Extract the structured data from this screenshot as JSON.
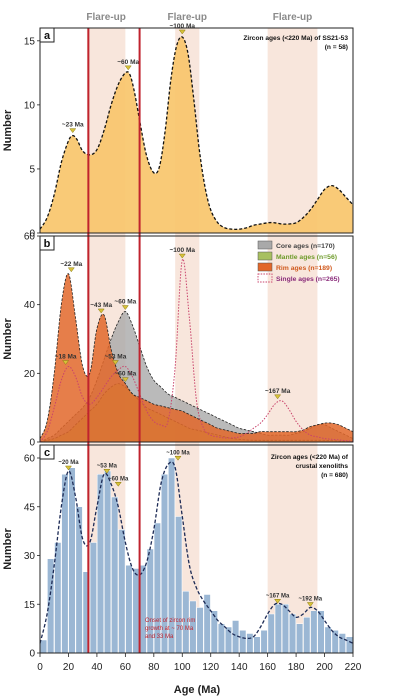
{
  "figure": {
    "xlabel": "Age (Ma)",
    "xlim": [
      0,
      220
    ],
    "xticks": [
      0,
      20,
      40,
      60,
      80,
      100,
      120,
      140,
      160,
      180,
      200,
      220
    ],
    "flareup_label": "Flare-up",
    "flareup_bands": [
      [
        33,
        60
      ],
      [
        95,
        112
      ],
      [
        160,
        195
      ]
    ],
    "red_lines": [
      34,
      70
    ],
    "colors": {
      "orange_fill": "#f8c66b",
      "core": "#a9a9a9",
      "mantle": "#a8c060",
      "rim": "#e2672a",
      "single": "#c9436b",
      "blue_bar": "#9bb7d4",
      "band": "#f6ddd0",
      "red_line": "#c0232e",
      "peak_marker": "#d8c23a"
    }
  },
  "chart_data": [
    {
      "type": "area",
      "panel_letter": "a",
      "title": "Zircon ages (<220 Ma) of SS21-53",
      "n_label": "(n = 58)",
      "ylabel": "Number",
      "ylim": [
        0,
        16
      ],
      "yticks": [
        0,
        5,
        10,
        15
      ],
      "x": [
        0,
        5,
        10,
        15,
        20,
        23,
        26,
        30,
        35,
        40,
        45,
        50,
        55,
        60,
        63,
        66,
        70,
        75,
        80,
        84,
        88,
        92,
        96,
        100,
        104,
        108,
        112,
        116,
        120,
        125,
        130,
        135,
        140,
        145,
        150,
        155,
        160,
        165,
        170,
        175,
        180,
        185,
        190,
        195,
        200,
        205,
        210,
        215,
        220
      ],
      "values": [
        0.3,
        1.2,
        3.0,
        5.5,
        7.2,
        7.6,
        7.3,
        6.4,
        6.1,
        6.5,
        8.0,
        10.0,
        11.6,
        12.5,
        12.4,
        11.2,
        8.8,
        6.0,
        4.7,
        5.2,
        8.0,
        12.0,
        14.6,
        15.3,
        14.0,
        10.5,
        6.5,
        3.6,
        1.8,
        0.8,
        0.4,
        0.3,
        0.3,
        0.4,
        0.6,
        0.7,
        0.8,
        0.8,
        0.7,
        0.7,
        0.8,
        1.2,
        1.8,
        2.6,
        3.4,
        3.7,
        3.4,
        2.8,
        2.2
      ],
      "peaks": [
        {
          "age": 23,
          "label": "~23 Ma",
          "value": 7.6
        },
        {
          "age": 62,
          "label": "~60 Ma",
          "value": 12.5
        },
        {
          "age": 100,
          "label": "~100 Ma",
          "value": 15.3
        }
      ]
    },
    {
      "type": "area",
      "panel_letter": "b",
      "ylabel": "Number",
      "ylim": [
        0,
        60
      ],
      "yticks": [
        0,
        20,
        40,
        60
      ],
      "x": [
        0,
        5,
        10,
        15,
        20,
        25,
        30,
        35,
        40,
        45,
        50,
        55,
        60,
        65,
        70,
        75,
        80,
        85,
        90,
        95,
        100,
        105,
        110,
        115,
        120,
        125,
        130,
        135,
        140,
        145,
        150,
        155,
        160,
        165,
        170,
        175,
        180,
        185,
        190,
        195,
        200,
        205,
        210,
        215,
        220
      ],
      "series": [
        {
          "name": "Core ages (n=170)",
          "key": "core",
          "style": "fill",
          "values": [
            0,
            1,
            2,
            4,
            6,
            8,
            10,
            13,
            18,
            24,
            30,
            35,
            38,
            34,
            28,
            22,
            18,
            16,
            14,
            13,
            12,
            11,
            10,
            9,
            8,
            7,
            6,
            5,
            4,
            3.5,
            3,
            2.5,
            2,
            2,
            2,
            2,
            2.5,
            3,
            4,
            5,
            5,
            4,
            3,
            2,
            1
          ]
        },
        {
          "name": "Mantle ages (n=56)",
          "key": "mantle",
          "style": "fill",
          "values": [
            0,
            0.5,
            1,
            2,
            3,
            5,
            7,
            9,
            11,
            14,
            16,
            17,
            16,
            14,
            12,
            10,
            9,
            8,
            7,
            6,
            5,
            4,
            3.5,
            3,
            2.5,
            2,
            1.5,
            1,
            0.8,
            0.6,
            0.5,
            0.5,
            0.5,
            0.5,
            0.5,
            0.5,
            0.5,
            0.5,
            0.5,
            0.5,
            0.5,
            0.4,
            0.3,
            0.2,
            0.1
          ]
        },
        {
          "name": "Rim ages (n=189)",
          "key": "rim",
          "style": "fill",
          "values": [
            1,
            6,
            20,
            40,
            49,
            36,
            22,
            20,
            33,
            37,
            27,
            20,
            17,
            14,
            13,
            12,
            11,
            10.5,
            10,
            9.5,
            9,
            8,
            7,
            6,
            5,
            4,
            3.5,
            3,
            2.5,
            2.5,
            2.5,
            3,
            3,
            3,
            3,
            3,
            3,
            3.5,
            4.5,
            5,
            5.5,
            5.5,
            5,
            4,
            3
          ]
        },
        {
          "name": "Single ages (n=265)",
          "key": "single",
          "style": "dotted",
          "values": [
            0,
            3,
            10,
            18,
            22,
            19,
            13,
            11,
            13,
            16,
            19,
            21,
            22,
            19,
            14,
            9,
            6,
            5,
            6,
            22,
            53,
            36,
            12,
            4,
            2,
            1.5,
            1.2,
            1.2,
            1.5,
            2.5,
            4,
            5.5,
            8,
            11,
            12,
            9.5,
            6,
            3.5,
            2,
            1.5,
            1,
            0.8,
            0.6,
            0.4,
            0.2
          ]
        }
      ],
      "peaks": [
        {
          "age": 22,
          "label": "~22 Ma",
          "value": 49
        },
        {
          "age": 18,
          "label": "~18 Ma",
          "value": 22
        },
        {
          "age": 43,
          "label": "~43 Ma",
          "value": 37
        },
        {
          "age": 60,
          "label": "~60 Ma",
          "value": 38
        },
        {
          "age": 53,
          "label": "~53 Ma",
          "value": 22
        },
        {
          "age": 60,
          "label": "~60 Ma",
          "value": 17
        },
        {
          "age": 100,
          "label": "~100 Ma",
          "value": 53
        },
        {
          "age": 167,
          "label": "~167 Ma",
          "value": 12
        }
      ]
    },
    {
      "type": "bar",
      "panel_letter": "c",
      "title": "Zircon ages (<220 Ma) of crustal xenoliths",
      "n_label": "(n = 680)",
      "ylabel": "Number",
      "ylim": [
        0,
        64
      ],
      "yticks": [
        0,
        15,
        30,
        45,
        60
      ],
      "bin_width": 5,
      "bin_starts": [
        0,
        5,
        10,
        15,
        20,
        25,
        30,
        35,
        40,
        45,
        50,
        55,
        60,
        65,
        70,
        75,
        80,
        85,
        90,
        95,
        100,
        105,
        110,
        115,
        120,
        125,
        130,
        135,
        140,
        145,
        150,
        155,
        160,
        165,
        170,
        175,
        180,
        185,
        190,
        195,
        200,
        205,
        210,
        215
      ],
      "values": [
        4,
        29,
        34,
        55,
        57,
        45,
        25,
        34,
        55,
        56,
        48,
        38,
        27,
        26,
        27,
        32,
        40,
        55,
        60,
        42,
        19,
        16,
        14,
        18,
        13,
        9,
        8,
        10,
        7,
        6,
        5,
        7,
        12,
        15,
        15,
        12,
        9,
        11,
        13,
        13,
        8,
        7,
        6,
        5
      ],
      "curve_x": [
        0,
        5,
        10,
        15,
        20,
        25,
        30,
        35,
        40,
        45,
        50,
        55,
        60,
        65,
        70,
        75,
        80,
        85,
        90,
        95,
        100,
        105,
        110,
        115,
        120,
        125,
        130,
        135,
        140,
        145,
        150,
        155,
        160,
        165,
        170,
        175,
        180,
        185,
        190,
        195,
        200,
        205,
        210,
        215,
        220
      ],
      "curve_values": [
        3,
        12,
        27,
        45,
        56,
        48,
        35,
        34,
        45,
        55,
        52,
        45,
        34,
        26,
        24,
        28,
        38,
        52,
        58,
        57,
        42,
        27,
        20,
        16,
        13,
        10,
        8,
        6,
        5,
        4.5,
        5,
        8,
        12,
        15,
        15,
        13,
        11,
        12,
        14,
        13,
        10,
        7,
        5,
        4,
        3
      ],
      "peaks": [
        {
          "age": 20,
          "label": "~20 Ma",
          "value": 56
        },
        {
          "age": 47,
          "label": "~53 Ma",
          "value": 55
        },
        {
          "age": 55,
          "label": "~60 Ma",
          "value": 51
        },
        {
          "age": 97,
          "label": "~100 Ma",
          "value": 59
        },
        {
          "age": 167,
          "label": "~167 Ma",
          "value": 15
        },
        {
          "age": 190,
          "label": "~192 Ma",
          "value": 14
        }
      ],
      "annotation": [
        "Onset of zircon rim",
        "growth at ~ 70 Ma",
        "and 33 Ma"
      ]
    }
  ]
}
